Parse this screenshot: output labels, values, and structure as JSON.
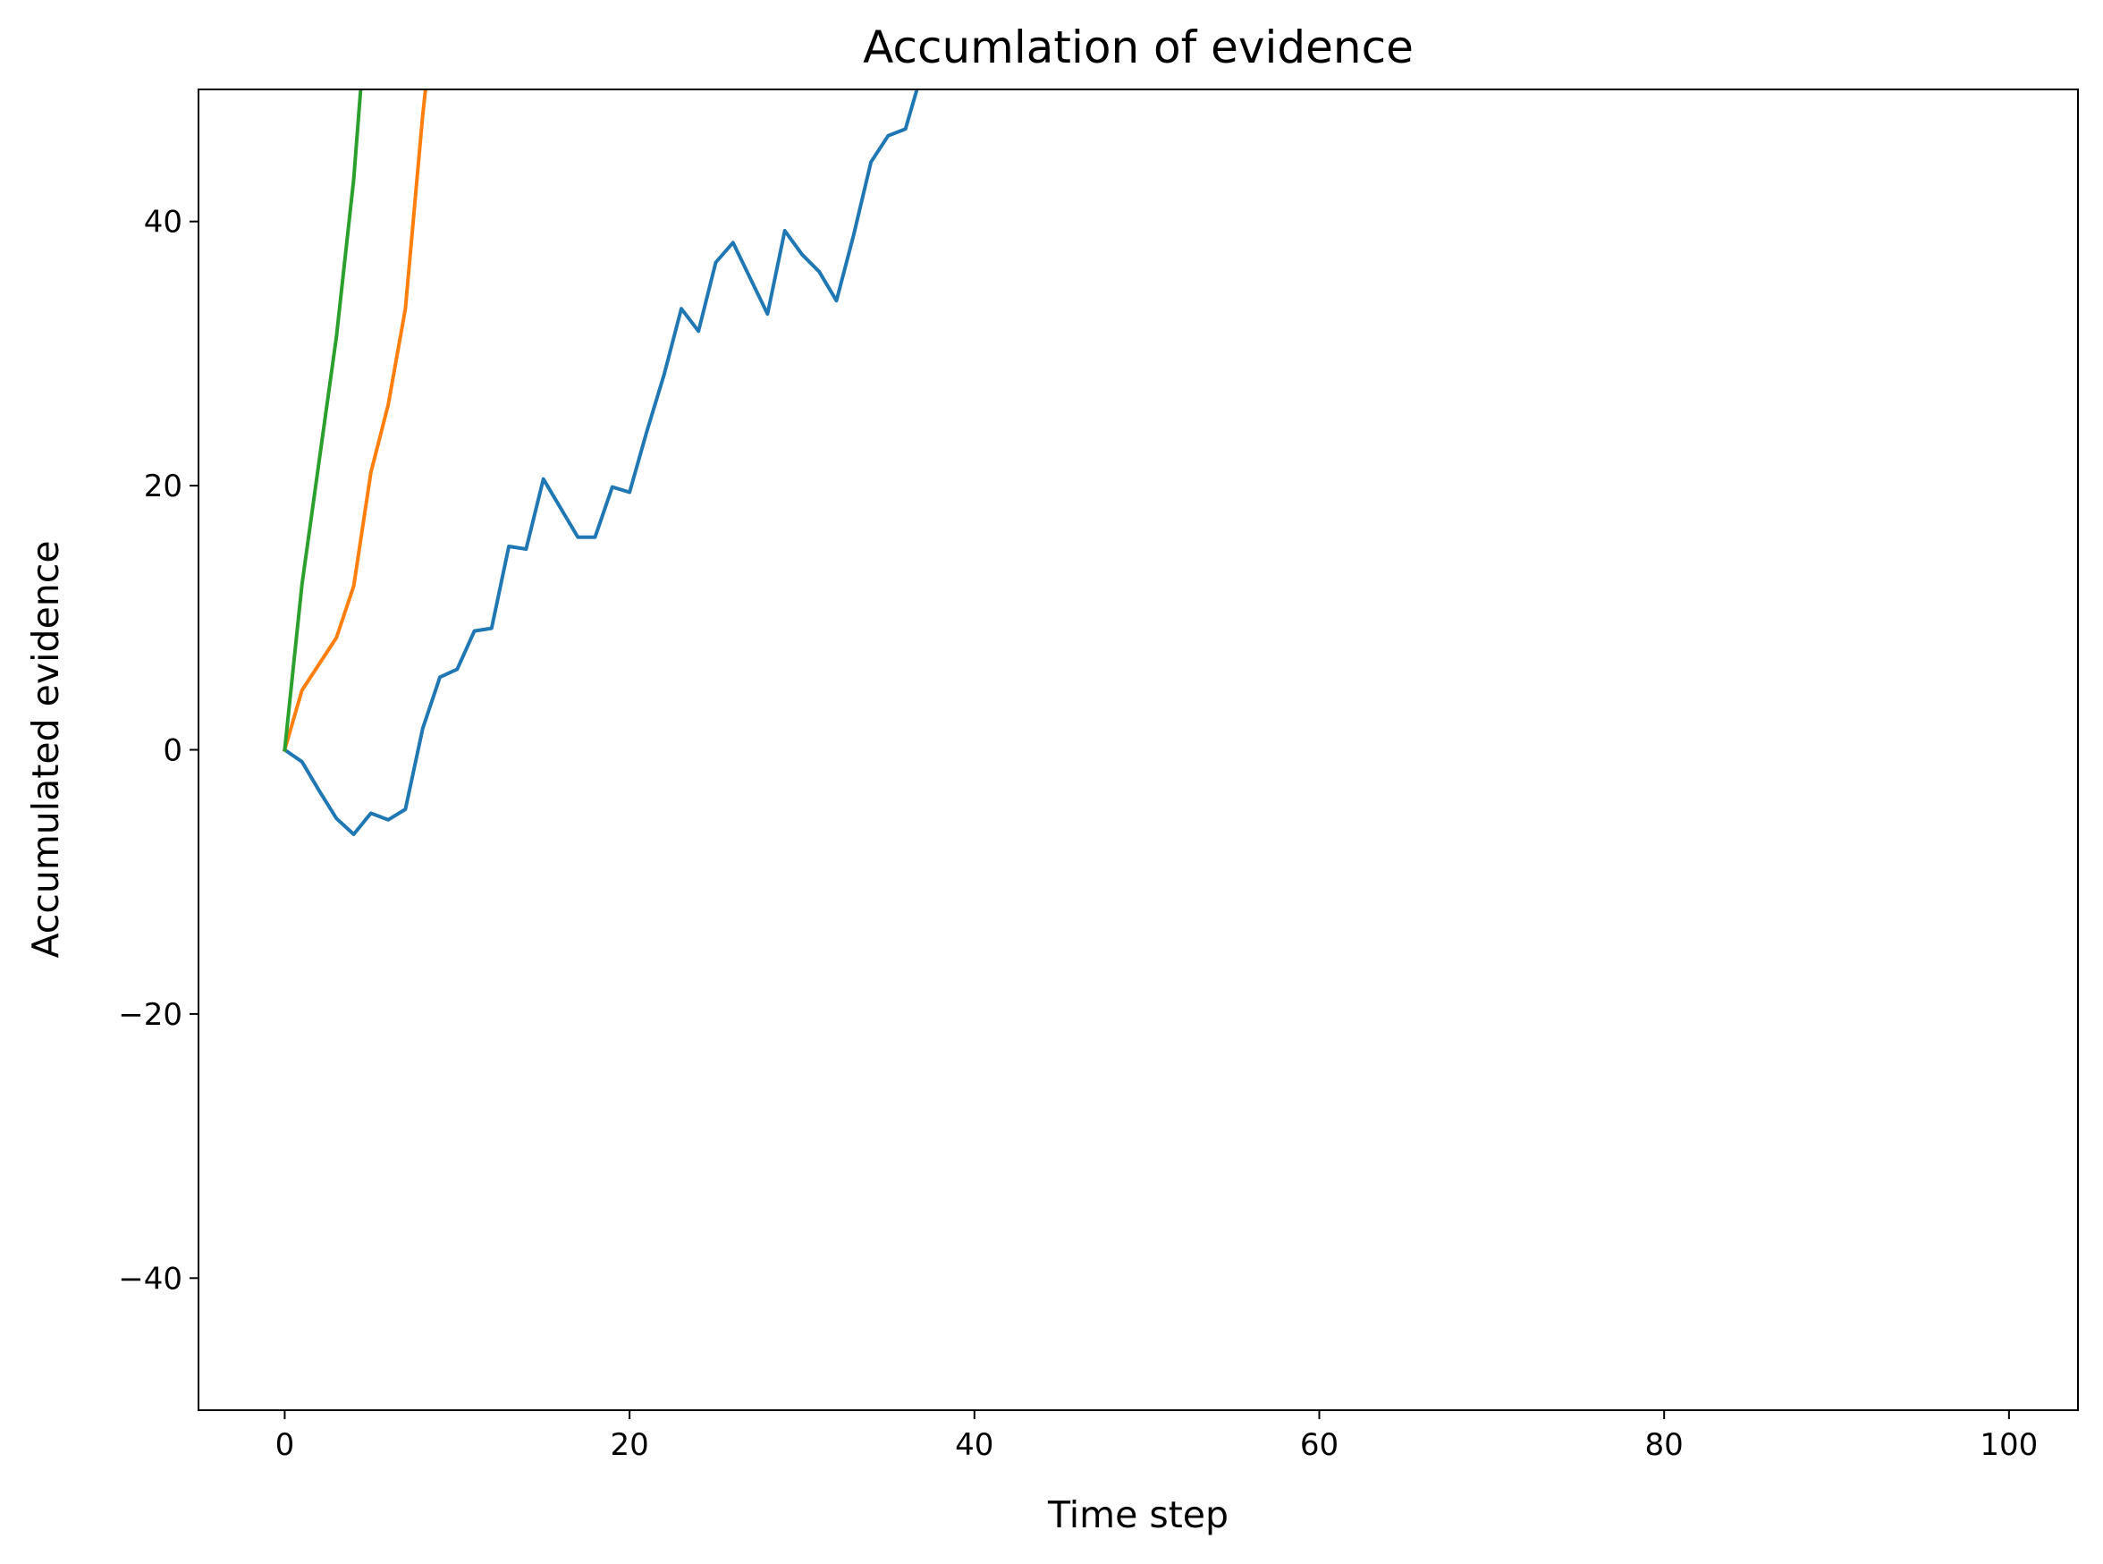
{
  "chart_data": {
    "type": "line",
    "title": "Accumlation of evidence",
    "xlabel": "Time step",
    "ylabel": "Accumulated evidence",
    "xlim": [
      -5,
      104
    ],
    "ylim": [
      -50,
      50
    ],
    "xticks": [
      0,
      20,
      40,
      60,
      80,
      100
    ],
    "yticks": [
      -40,
      -20,
      0,
      20,
      40
    ],
    "xtick_labels": [
      "0",
      "20",
      "40",
      "60",
      "80",
      "100"
    ],
    "ytick_labels": [
      "−40",
      "−20",
      "0",
      "20",
      "40"
    ],
    "grid": false,
    "legend": "none",
    "series": [
      {
        "color": "#1f77b4",
        "x": [
          0,
          1,
          2,
          3,
          4,
          5,
          6,
          7,
          8,
          9,
          10,
          11,
          12,
          13,
          14,
          15,
          16,
          17,
          18,
          19,
          20,
          21,
          22,
          23,
          24,
          25,
          26,
          27,
          28,
          29,
          30,
          31,
          32,
          33,
          34,
          35,
          36,
          37,
          38
        ],
        "values": [
          0,
          -0.9,
          -3.1,
          -5.2,
          -6.4,
          -4.8,
          -5.3,
          -4.5,
          1.6,
          5.5,
          6.1,
          9.0,
          9.2,
          15.4,
          15.2,
          20.5,
          18.3,
          16.1,
          16.1,
          19.9,
          19.5,
          24.1,
          28.4,
          33.4,
          31.7,
          36.9,
          38.4,
          35.7,
          33.0,
          39.3,
          37.5,
          36.2,
          34.0,
          39.0,
          44.5,
          46.5,
          47.0,
          51.5,
          54.0
        ]
      },
      {
        "color": "#ff7f0e",
        "x": [
          0,
          1,
          2,
          3,
          4,
          5,
          6,
          7,
          8,
          9
        ],
        "values": [
          0,
          4.5,
          6.5,
          8.5,
          12.4,
          21.0,
          26.1,
          33.4,
          48.0,
          60.0
        ]
      },
      {
        "color": "#2ca02c",
        "x": [
          0,
          1,
          2,
          3,
          4,
          5
        ],
        "values": [
          0,
          12.5,
          21.9,
          31.3,
          43.2,
          60.0
        ]
      }
    ]
  }
}
